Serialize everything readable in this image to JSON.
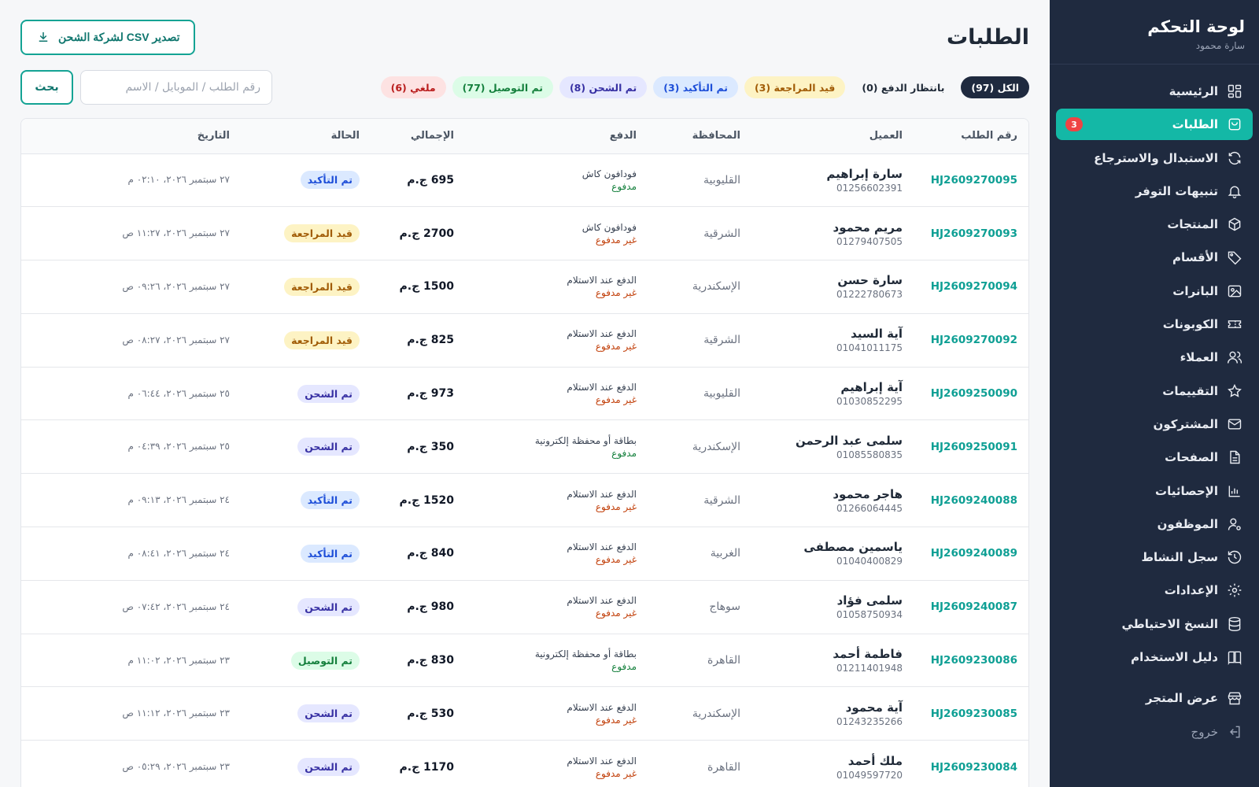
{
  "sidebar": {
    "title": "لوحة التحكم",
    "user": "سارة محمود",
    "items": [
      {
        "label": "الرئيسية",
        "icon": "grid"
      },
      {
        "label": "الطلبات",
        "icon": "bag",
        "active": true,
        "badge": "3"
      },
      {
        "label": "الاستبدال والاسترجاع",
        "icon": "refresh"
      },
      {
        "label": "تنبيهات التوفر",
        "icon": "bell"
      },
      {
        "label": "المنتجات",
        "icon": "box"
      },
      {
        "label": "الأقسام",
        "icon": "tag"
      },
      {
        "label": "البانرات",
        "icon": "image"
      },
      {
        "label": "الكوبونات",
        "icon": "ticket"
      },
      {
        "label": "العملاء",
        "icon": "users"
      },
      {
        "label": "التقييمات",
        "icon": "star"
      },
      {
        "label": "المشتركون",
        "icon": "mail"
      },
      {
        "label": "الصفحات",
        "icon": "file"
      },
      {
        "label": "الإحصائيات",
        "icon": "chart"
      },
      {
        "label": "الموظفون",
        "icon": "user-cog"
      },
      {
        "label": "سجل النشاط",
        "icon": "history"
      },
      {
        "label": "الإعدادات",
        "icon": "gear"
      },
      {
        "label": "النسخ الاحتياطي",
        "icon": "database"
      },
      {
        "label": "دليل الاستخدام",
        "icon": "book"
      }
    ],
    "store_label": "عرض المتجر",
    "logout_label": "خروج"
  },
  "header": {
    "title": "الطلبات",
    "export_label": "تصدير CSV لشركة الشحن"
  },
  "filters": [
    {
      "label": "الكل (97)",
      "kind": "all"
    },
    {
      "label": "بانتظار الدفع (0)",
      "kind": "pending"
    },
    {
      "label": "قيد المراجعة (3)",
      "kind": "review"
    },
    {
      "label": "تم التأكيد (3)",
      "kind": "confirmed"
    },
    {
      "label": "تم الشحن (8)",
      "kind": "shipped"
    },
    {
      "label": "تم التوصيل (77)",
      "kind": "delivered"
    },
    {
      "label": "ملغي (6)",
      "kind": "cancelled"
    }
  ],
  "search": {
    "placeholder": "رقم الطلب / الموبايل / الاسم",
    "value": "",
    "button_label": "بحث"
  },
  "table": {
    "columns": [
      "رقم الطلب",
      "العميل",
      "المحافظة",
      "الدفع",
      "الإجمالي",
      "الحالة",
      "التاريخ"
    ],
    "rows": [
      {
        "id": "HJ2609270095",
        "name": "سارة إبراهيم",
        "phone": "01256602391",
        "gov": "القليوبية",
        "method": "فودافون كاش",
        "pay": "مدفوع",
        "paid": true,
        "total": "695 ج.م",
        "status": "تم التأكيد",
        "kind": "confirmed",
        "date": "٢٧ سبتمبر ٢٠٢٦، ٠٢:١٠ م"
      },
      {
        "id": "HJ2609270093",
        "name": "مريم محمود",
        "phone": "01279407505",
        "gov": "الشرقية",
        "method": "فودافون كاش",
        "pay": "غير مدفوع",
        "paid": false,
        "total": "2700 ج.م",
        "status": "قيد المراجعة",
        "kind": "review",
        "date": "٢٧ سبتمبر ٢٠٢٦، ١١:٢٧ ص"
      },
      {
        "id": "HJ2609270094",
        "name": "سارة حسن",
        "phone": "01222780673",
        "gov": "الإسكندرية",
        "method": "الدفع عند الاستلام",
        "pay": "غير مدفوع",
        "paid": false,
        "total": "1500 ج.م",
        "status": "قيد المراجعة",
        "kind": "review",
        "date": "٢٧ سبتمبر ٢٠٢٦، ٠٩:٢٦ ص"
      },
      {
        "id": "HJ2609270092",
        "name": "آية السيد",
        "phone": "01041011175",
        "gov": "الشرقية",
        "method": "الدفع عند الاستلام",
        "pay": "غير مدفوع",
        "paid": false,
        "total": "825 ج.م",
        "status": "قيد المراجعة",
        "kind": "review",
        "date": "٢٧ سبتمبر ٢٠٢٦، ٠٨:٢٧ ص"
      },
      {
        "id": "HJ2609250090",
        "name": "آية إبراهيم",
        "phone": "01030852295",
        "gov": "القليوبية",
        "method": "الدفع عند الاستلام",
        "pay": "غير مدفوع",
        "paid": false,
        "total": "973 ج.م",
        "status": "تم الشحن",
        "kind": "shipped",
        "date": "٢٥ سبتمبر ٢٠٢٦، ٠٦:٤٤ م"
      },
      {
        "id": "HJ2609250091",
        "name": "سلمى عبد الرحمن",
        "phone": "01085580835",
        "gov": "الإسكندرية",
        "method": "بطاقة أو محفظة إلكترونية",
        "pay": "مدفوع",
        "paid": true,
        "total": "350 ج.م",
        "status": "تم الشحن",
        "kind": "shipped",
        "date": "٢٥ سبتمبر ٢٠٢٦، ٠٤:٣٩ م"
      },
      {
        "id": "HJ2609240088",
        "name": "هاجر محمود",
        "phone": "01266064445",
        "gov": "الشرقية",
        "method": "الدفع عند الاستلام",
        "pay": "غير مدفوع",
        "paid": false,
        "total": "1520 ج.م",
        "status": "تم التأكيد",
        "kind": "confirmed",
        "date": "٢٤ سبتمبر ٢٠٢٦، ٠٩:١٣ م"
      },
      {
        "id": "HJ2609240089",
        "name": "ياسمين مصطفى",
        "phone": "01040400829",
        "gov": "الغربية",
        "method": "الدفع عند الاستلام",
        "pay": "غير مدفوع",
        "paid": false,
        "total": "840 ج.م",
        "status": "تم التأكيد",
        "kind": "confirmed",
        "date": "٢٤ سبتمبر ٢٠٢٦، ٠٨:٤١ م"
      },
      {
        "id": "HJ2609240087",
        "name": "سلمى فؤاد",
        "phone": "01058750934",
        "gov": "سوهاج",
        "method": "الدفع عند الاستلام",
        "pay": "غير مدفوع",
        "paid": false,
        "total": "980 ج.م",
        "status": "تم الشحن",
        "kind": "shipped",
        "date": "٢٤ سبتمبر ٢٠٢٦، ٠٧:٤٢ ص"
      },
      {
        "id": "HJ2609230086",
        "name": "فاطمة أحمد",
        "phone": "01211401948",
        "gov": "القاهرة",
        "method": "بطاقة أو محفظة إلكترونية",
        "pay": "مدفوع",
        "paid": true,
        "total": "830 ج.م",
        "status": "تم التوصيل",
        "kind": "delivered",
        "date": "٢٣ سبتمبر ٢٠٢٦، ١١:٠٢ م"
      },
      {
        "id": "HJ2609230085",
        "name": "آية محمود",
        "phone": "01243235266",
        "gov": "الإسكندرية",
        "method": "الدفع عند الاستلام",
        "pay": "غير مدفوع",
        "paid": false,
        "total": "530 ج.م",
        "status": "تم الشحن",
        "kind": "shipped",
        "date": "٢٣ سبتمبر ٢٠٢٦، ١١:١٢ ص"
      },
      {
        "id": "HJ2609230084",
        "name": "ملك أحمد",
        "phone": "01049597720",
        "gov": "القاهرة",
        "method": "الدفع عند الاستلام",
        "pay": "غير مدفوع",
        "paid": false,
        "total": "1170 ج.م",
        "status": "تم الشحن",
        "kind": "shipped",
        "date": "٢٣ سبتمبر ٢٠٢٦، ٠٥:٢٩ ص"
      }
    ]
  }
}
